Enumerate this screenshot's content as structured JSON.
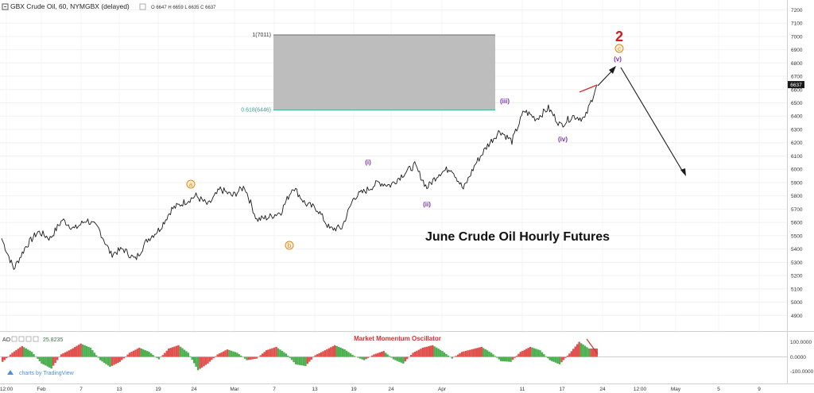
{
  "header": {
    "symbol": "GBX Crude Oil, 60, NYMGBX (delayed)",
    "ohlc": "O 6647  H 6659  L 6635  C 6637"
  },
  "main_pane": {
    "ylim": [
      4800,
      7250
    ],
    "y_ticks": [
      4900,
      5000,
      5100,
      5200,
      5300,
      5400,
      5500,
      5600,
      5700,
      5800,
      5900,
      6000,
      6100,
      6200,
      6300,
      6400,
      6500,
      6600,
      6700,
      6800,
      6900,
      7000,
      7100,
      7200
    ],
    "last_price_label": "6637",
    "fib_zone": {
      "top_label": "1(7011)",
      "bottom_label": "0.618(6446)",
      "top": 7011,
      "bottom": 6446
    },
    "wave_labels": [
      {
        "text": "a",
        "style": "circle-orange"
      },
      {
        "text": "b",
        "style": "circle-orange"
      },
      {
        "text": "(i)",
        "style": "purple"
      },
      {
        "text": "(ii)",
        "style": "purple"
      },
      {
        "text": "(iii)",
        "style": "purple"
      },
      {
        "text": "(iv)",
        "style": "purple"
      },
      {
        "text": "(v)",
        "style": "purple"
      },
      {
        "text": "c",
        "style": "circle-orange"
      },
      {
        "text": "2",
        "style": "big-red"
      }
    ],
    "annotation": "June Crude Oil Hourly Futures"
  },
  "oscillator": {
    "label": "AO",
    "value": "25.8235",
    "title": "Market Momentum Oscillator",
    "y_ticks": [
      "100.0000",
      "0.0000",
      "-100.0000"
    ],
    "watermark": "charts by TradingView"
  },
  "x_axis": {
    "labels": [
      "12:00",
      "Feb",
      "7",
      "13",
      "19",
      "24",
      "Mar",
      "7",
      "13",
      "19",
      "24",
      "Apr",
      "11",
      "17",
      "24",
      "12:00",
      "May",
      "5",
      "9"
    ]
  },
  "chart_data": {
    "type": "line",
    "title": "",
    "xlabel": "",
    "ylabel": "",
    "ylim": [
      4800,
      7250
    ],
    "series": [
      {
        "x": [
          0,
          4,
          8,
          12,
          16,
          20,
          24,
          28,
          32,
          36,
          40,
          44,
          48,
          52,
          56,
          60,
          64,
          68,
          72,
          76,
          80,
          84,
          88,
          92,
          96,
          100,
          104,
          108,
          112,
          116,
          120,
          124,
          128,
          132,
          136,
          140,
          144,
          148,
          152,
          156,
          160,
          164,
          168,
          172,
          176,
          180,
          184,
          188,
          192,
          196
        ],
        "values": [
          5480,
          5250,
          5420,
          5530,
          5480,
          5620,
          5550,
          5620,
          5550,
          5360,
          5400,
          5320,
          5470,
          5550,
          5700,
          5750,
          5800,
          5730,
          5850,
          5800,
          5870,
          5620,
          5640,
          5680,
          5870,
          5740,
          5700,
          5550,
          5560,
          5790,
          5840,
          5900,
          5880,
          5960,
          6030,
          5860,
          5970,
          6010,
          5850,
          6040,
          6180,
          6290,
          6210,
          6440,
          6380,
          6460,
          6330,
          6400,
          6380,
          6637
        ]
      }
    ]
  },
  "osc_data": {
    "values": [
      -30,
      25,
      65,
      30,
      -40,
      -70,
      15,
      45,
      80,
      55,
      -20,
      -60,
      -30,
      25,
      55,
      30,
      -15,
      50,
      70,
      25,
      -80,
      -40,
      15,
      45,
      25,
      -20,
      -10,
      40,
      60,
      20,
      -45,
      -55,
      10,
      40,
      70,
      45,
      5,
      -20,
      15,
      35,
      -15,
      -40,
      25,
      55,
      70,
      35,
      -10,
      30,
      45,
      60,
      25,
      -25,
      -30,
      30,
      60,
      40,
      -20,
      -45,
      20,
      90,
      50
    ]
  },
  "colors": {
    "price_line": "#1a1a1a",
    "fib_box": "#bdbdbd",
    "fib_top_line": "#808080",
    "fib_bottom_line": "#4fb3a4",
    "fib_bottom_text": "#3aa090",
    "osc_up": "#e0504d",
    "osc_down": "#4caf50",
    "wave_purple": "#7b2fb5",
    "wave_orange": "#d68a1c",
    "wave_red": "#d01c1c",
    "title_red": "#d32f2f"
  }
}
